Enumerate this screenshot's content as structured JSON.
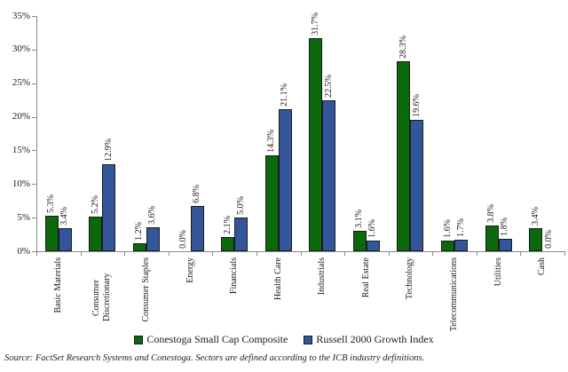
{
  "chart_data": {
    "type": "bar",
    "categories": [
      "Basic Materials",
      "Consumer Discretionary",
      "Consumer Staples",
      "Energy",
      "Financials",
      "Health Care",
      "Industrials",
      "Real Estate",
      "Technology",
      "Telecommunications",
      "Utilities",
      "Cash"
    ],
    "series": [
      {
        "name": "Conestoga Small Cap Composite",
        "color": "#0a690a",
        "values": [
          5.3,
          5.2,
          1.2,
          0.0,
          2.1,
          14.3,
          31.7,
          3.1,
          28.3,
          1.6,
          3.8,
          3.4
        ]
      },
      {
        "name": "Russell 2000 Growth Index",
        "color": "#33569b",
        "values": [
          3.4,
          12.9,
          3.6,
          6.8,
          5.0,
          21.1,
          22.5,
          1.6,
          19.6,
          1.7,
          1.8,
          0.0
        ]
      }
    ],
    "title": "",
    "xlabel": "",
    "ylabel": "",
    "ylim": [
      0,
      35
    ],
    "ytick_step": 5,
    "ytick_suffix": "%",
    "bar_label_suffix": "%",
    "grid": false,
    "legend_position": "bottom",
    "axis_color": "#8a8a8a",
    "bar_border_color": "#1b1b1b"
  },
  "footer": {
    "source_note": "Source: FactSet Research Systems and Conestoga. Sectors are defined according to the ICB industry definitions."
  }
}
